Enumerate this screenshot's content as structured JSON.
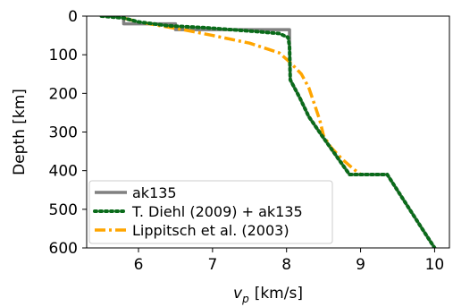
{
  "chart_data": {
    "type": "line",
    "title": "",
    "xlabel_symbol": "v",
    "xlabel_subscript": "p",
    "xlabel_unit": "[km/s]",
    "ylabel": "Depth [km]",
    "xlim": [
      5.3,
      10.2
    ],
    "ylim": [
      600,
      0
    ],
    "y_inverted": true,
    "x_ticks": [
      6,
      7,
      8,
      9,
      10
    ],
    "y_ticks": [
      0,
      100,
      200,
      300,
      400,
      500,
      600
    ],
    "grid": false,
    "legend_position": "lower-left",
    "series": [
      {
        "name": "ak135",
        "color": "#808080",
        "dash": "solid",
        "points": [
          [
            5.8,
            0
          ],
          [
            5.8,
            20
          ],
          [
            6.5,
            20
          ],
          [
            6.5,
            35
          ],
          [
            8.04,
            35
          ],
          [
            8.04,
            77.5
          ],
          [
            8.045,
            120
          ],
          [
            8.05,
            165
          ],
          [
            8.175,
            210
          ],
          [
            8.3,
            260
          ],
          [
            8.48,
            310
          ],
          [
            8.665,
            360
          ],
          [
            8.85,
            410
          ],
          [
            9.03,
            410
          ],
          [
            9.36,
            410
          ],
          [
            9.528,
            460
          ],
          [
            9.696,
            510
          ],
          [
            9.864,
            560
          ],
          [
            10.0,
            600
          ]
        ]
      },
      {
        "name": "T. Diehl (2009) + ak135",
        "color": "#0a6b1a",
        "dash": "dotted",
        "points": [
          [
            5.5,
            0
          ],
          [
            5.8,
            5
          ],
          [
            6.0,
            15
          ],
          [
            6.4,
            25
          ],
          [
            6.9,
            30
          ],
          [
            7.6,
            40
          ],
          [
            7.9,
            45
          ],
          [
            8.02,
            55
          ],
          [
            8.04,
            77.5
          ],
          [
            8.045,
            120
          ],
          [
            8.05,
            165
          ],
          [
            8.175,
            210
          ],
          [
            8.3,
            260
          ],
          [
            8.48,
            310
          ],
          [
            8.665,
            360
          ],
          [
            8.85,
            410
          ],
          [
            9.36,
            410
          ],
          [
            9.528,
            460
          ],
          [
            9.696,
            510
          ],
          [
            9.864,
            560
          ],
          [
            10.0,
            600
          ]
        ]
      },
      {
        "name": "Lippitsch et al. (2003)",
        "color": "#ffa500",
        "dash": "dashdot",
        "points": [
          [
            5.8,
            5
          ],
          [
            6.0,
            15
          ],
          [
            6.3,
            25
          ],
          [
            6.6,
            35
          ],
          [
            7.0,
            50
          ],
          [
            7.5,
            70
          ],
          [
            7.9,
            95
          ],
          [
            8.05,
            120
          ],
          [
            8.2,
            150
          ],
          [
            8.3,
            185
          ],
          [
            8.38,
            230
          ],
          [
            8.45,
            270
          ],
          [
            8.5,
            310
          ],
          [
            8.6,
            340
          ],
          [
            8.75,
            370
          ],
          [
            8.9,
            395
          ],
          [
            9.0,
            410
          ]
        ]
      }
    ]
  }
}
